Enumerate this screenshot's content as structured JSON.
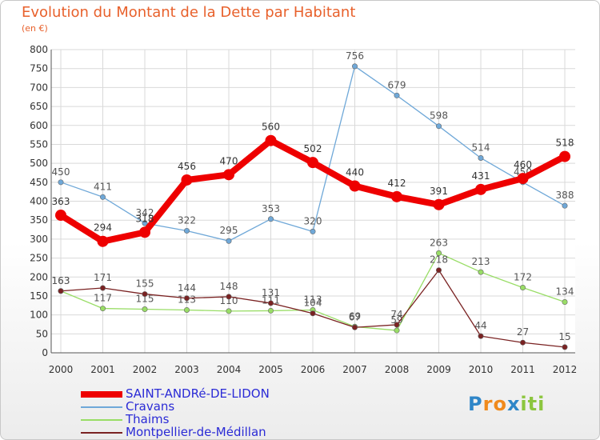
{
  "title": "Evolution du Montant de la Dette par Habitant",
  "subtitle": "(en €)",
  "brand": [
    "P",
    "r",
    "o",
    "x",
    "i",
    "ti"
  ],
  "chart_data": {
    "type": "line",
    "title": "Evolution du Montant de la Dette par Habitant",
    "ylabel": "(en €)",
    "xlabel": "",
    "x": [
      2000,
      2001,
      2002,
      2003,
      2004,
      2005,
      2006,
      2007,
      2008,
      2009,
      2010,
      2011,
      2012
    ],
    "ylim": [
      0,
      800
    ],
    "yticks": [
      0,
      50,
      100,
      150,
      200,
      250,
      300,
      350,
      400,
      450,
      500,
      550,
      600,
      650,
      700,
      750,
      800
    ],
    "grid": true,
    "legend": "bottom-left",
    "series": [
      {
        "name": "SAINT-ANDRé-DE-LIDON",
        "color": "#ee0000",
        "values": [
          363,
          294,
          318,
          456,
          470,
          560,
          502,
          440,
          412,
          391,
          431,
          460,
          518
        ]
      },
      {
        "name": "Cravans",
        "color": "#6fa8d8",
        "values": [
          450,
          411,
          342,
          322,
          295,
          353,
          320,
          756,
          679,
          598,
          514,
          450,
          388
        ]
      },
      {
        "name": "Thaims",
        "color": "#99dd66",
        "values": [
          163,
          117,
          115,
          113,
          110,
          111,
          113,
          69,
          59,
          263,
          213,
          172,
          134
        ]
      },
      {
        "name": "Montpellier-de-Médillan",
        "color": "#7a2222",
        "values": [
          163,
          171,
          155,
          144,
          148,
          131,
          104,
          67,
          74,
          218,
          44,
          27,
          15
        ]
      }
    ]
  }
}
